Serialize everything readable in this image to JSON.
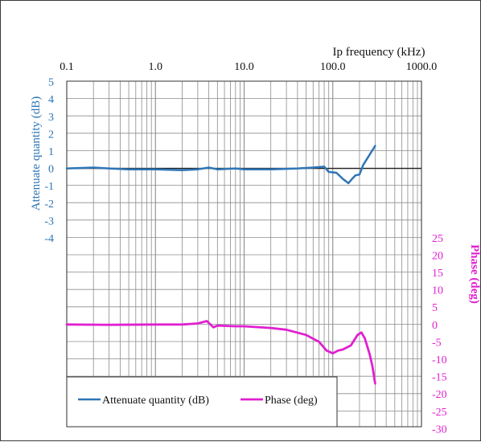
{
  "chart_data": {
    "type": "line",
    "x_axis": {
      "title": "Ip  frequency (kHz)",
      "scale": "log",
      "range": [
        0.1,
        1000.0
      ],
      "tick_labels": [
        "0.1",
        "1.0",
        "10.0",
        "100.0",
        "1000.0"
      ],
      "position": "top"
    },
    "y_axis_left": {
      "title": "Attenuate quantity (dB)",
      "color": "#2e75b6",
      "range": [
        -4,
        5
      ],
      "tick_labels": [
        "5",
        "4",
        "3",
        "2",
        "1",
        "0",
        "-1",
        "-2",
        "-3",
        "-4"
      ]
    },
    "y_axis_right": {
      "title": "Phase (deg)",
      "color": "#e020d0",
      "range": [
        -30,
        25
      ],
      "tick_labels": [
        "25",
        "20",
        "15",
        "10",
        "5",
        "0",
        "-5",
        "-10",
        "-15",
        "-20",
        "-25",
        "-30"
      ]
    },
    "grid": true,
    "legend_position": "bottom-left",
    "series": [
      {
        "name": "Attenuate quantity (dB)",
        "axis": "left",
        "color": "#2e75b6",
        "points": [
          [
            0.1,
            0.0
          ],
          [
            0.2,
            0.05
          ],
          [
            0.3,
            0.0
          ],
          [
            0.5,
            -0.05
          ],
          [
            1.0,
            -0.05
          ],
          [
            2.0,
            -0.1
          ],
          [
            3.0,
            -0.05
          ],
          [
            4.0,
            0.05
          ],
          [
            5.0,
            -0.05
          ],
          [
            8.0,
            0.0
          ],
          [
            10.0,
            -0.05
          ],
          [
            20.0,
            -0.05
          ],
          [
            40.0,
            0.0
          ],
          [
            60.0,
            0.05
          ],
          [
            80.0,
            0.1
          ],
          [
            90.0,
            -0.2
          ],
          [
            110.0,
            -0.25
          ],
          [
            130.0,
            -0.6
          ],
          [
            150.0,
            -0.85
          ],
          [
            165.0,
            -0.6
          ],
          [
            180.0,
            -0.4
          ],
          [
            200.0,
            -0.35
          ],
          [
            220.0,
            0.2
          ],
          [
            250.0,
            0.65
          ],
          [
            300.0,
            1.3
          ]
        ]
      },
      {
        "name": "Phase (deg)",
        "axis": "right",
        "color": "#e020d0",
        "points": [
          [
            0.1,
            0.0
          ],
          [
            0.3,
            -0.1
          ],
          [
            1.0,
            0.0
          ],
          [
            2.0,
            0.0
          ],
          [
            3.0,
            0.3
          ],
          [
            3.8,
            1.0
          ],
          [
            4.5,
            -0.8
          ],
          [
            5.0,
            -0.3
          ],
          [
            8.0,
            -0.5
          ],
          [
            10.0,
            -0.5
          ],
          [
            20.0,
            -1.0
          ],
          [
            30.0,
            -1.5
          ],
          [
            50.0,
            -3.0
          ],
          [
            70.0,
            -5.0
          ],
          [
            85.0,
            -7.5
          ],
          [
            100.0,
            -8.3
          ],
          [
            115.0,
            -7.5
          ],
          [
            130.0,
            -7.2
          ],
          [
            160.0,
            -6.0
          ],
          [
            190.0,
            -3.0
          ],
          [
            210.0,
            -2.3
          ],
          [
            230.0,
            -4.0
          ],
          [
            260.0,
            -8.5
          ],
          [
            280.0,
            -12.0
          ],
          [
            300.0,
            -17.0
          ]
        ]
      }
    ]
  }
}
